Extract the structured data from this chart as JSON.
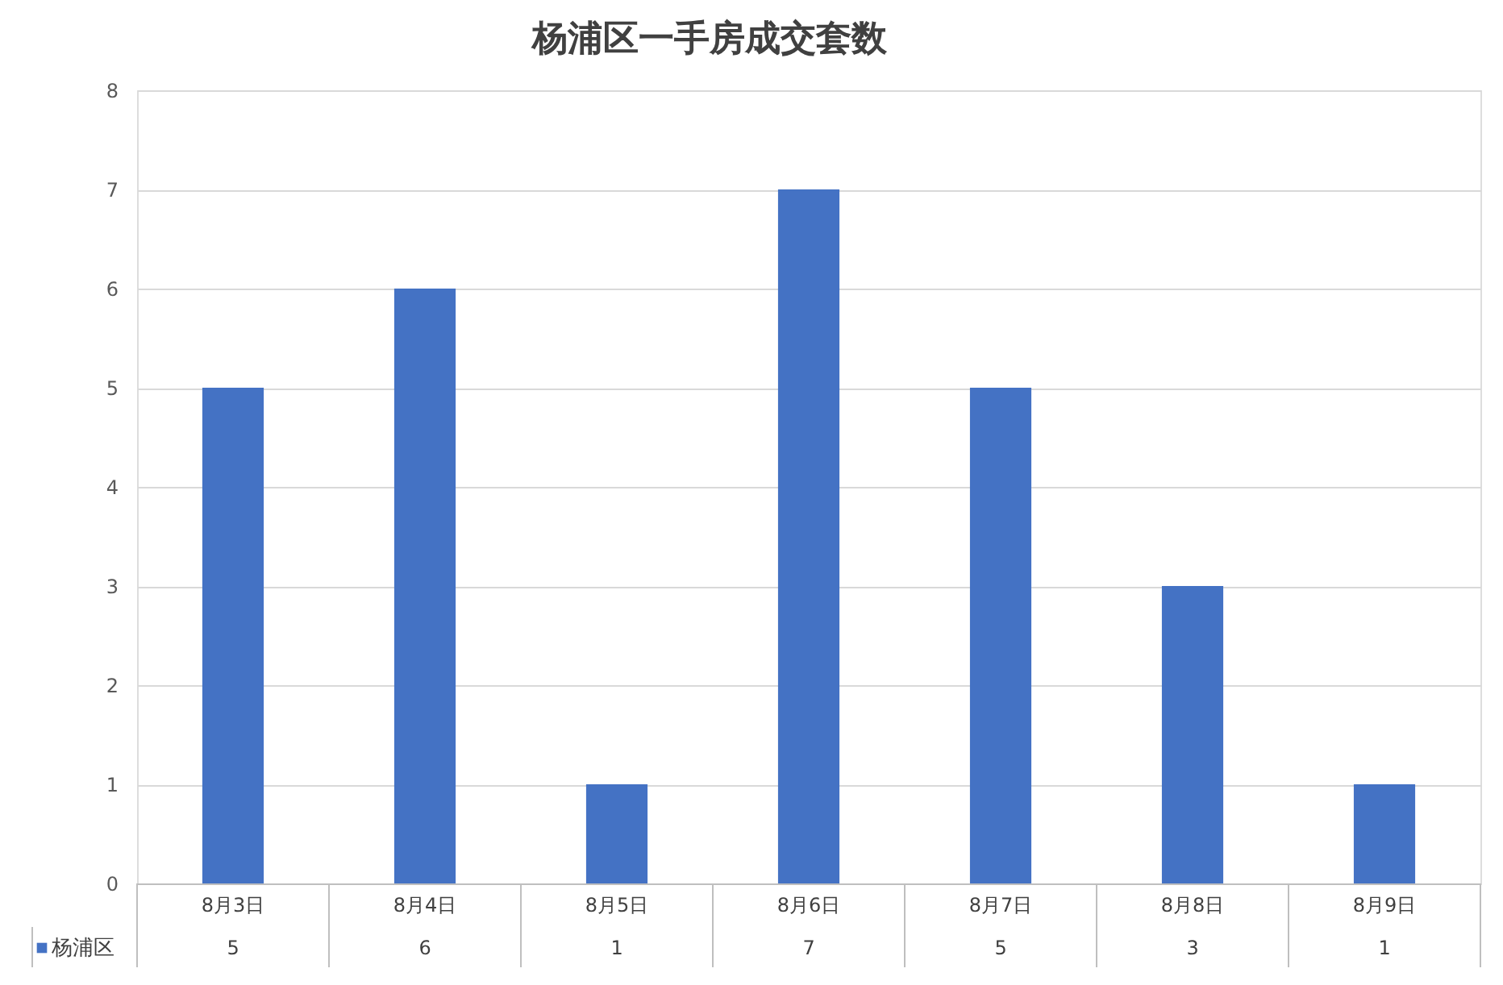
{
  "chart_data": {
    "type": "bar",
    "title": "杨浦区一手房成交套数",
    "categories": [
      "8月3日",
      "8月4日",
      "8月5日",
      "8月6日",
      "8月7日",
      "8月8日",
      "8月9日"
    ],
    "series": [
      {
        "name": "杨浦区",
        "color": "#4472c4",
        "values": [
          5,
          6,
          1,
          7,
          5,
          3,
          1
        ]
      }
    ],
    "ylim": [
      0,
      8
    ],
    "yticks": [
      0,
      1,
      2,
      3,
      4,
      5,
      6,
      7,
      8
    ],
    "grid": "y",
    "data_labels": true,
    "legend": "bottom"
  }
}
